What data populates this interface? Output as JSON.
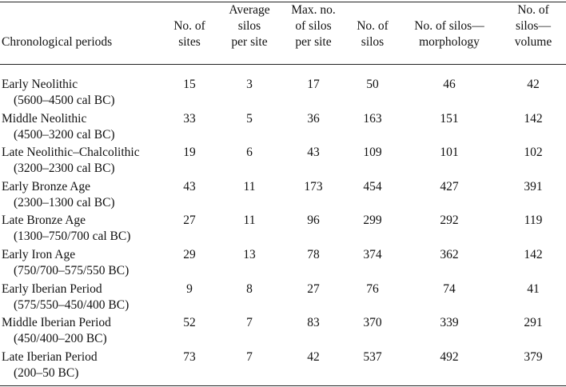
{
  "table": {
    "header": [
      [
        "Chronological periods"
      ],
      [
        "No. of",
        "sites"
      ],
      [
        "Average",
        "silos",
        "per site"
      ],
      [
        "Max. no.",
        "of silos",
        "per site"
      ],
      [
        "No. of",
        "silos"
      ],
      [
        "No. of silos—",
        "morphology"
      ],
      [
        "No. of",
        "silos—",
        "volume"
      ]
    ],
    "rows": [
      {
        "period": "Early Neolithic",
        "dates": "(5600–4500 cal BC)",
        "cells": [
          "15",
          "3",
          "17",
          "50",
          "46",
          "42"
        ]
      },
      {
        "period": "Middle Neolithic",
        "dates": "(4500–3200 cal BC)",
        "cells": [
          "33",
          "5",
          "36",
          "163",
          "151",
          "142"
        ]
      },
      {
        "period": "Late Neolithic–Chalcolithic",
        "dates": "(3200–2300 cal BC)",
        "cells": [
          "19",
          "6",
          "43",
          "109",
          "101",
          "102"
        ]
      },
      {
        "period": "Early Bronze Age",
        "dates": "(2300–1300 cal BC)",
        "cells": [
          "43",
          "11",
          "173",
          "454",
          "427",
          "391"
        ]
      },
      {
        "period": "Late Bronze Age",
        "dates": "(1300–750/700 cal BC)",
        "cells": [
          "27",
          "11",
          "96",
          "299",
          "292",
          "119"
        ]
      },
      {
        "period": "Early Iron Age",
        "dates": "(750/700–575/550 BC)",
        "cells": [
          "29",
          "13",
          "78",
          "374",
          "362",
          "142"
        ]
      },
      {
        "period": "Early Iberian Period",
        "dates": "(575/550–450/400 BC)",
        "cells": [
          "9",
          "8",
          "27",
          "76",
          "74",
          "41"
        ]
      },
      {
        "period": "Middle Iberian Period",
        "dates": "(450/400–200 BC)",
        "cells": [
          "52",
          "7",
          "83",
          "370",
          "339",
          "291"
        ]
      },
      {
        "period": "Late Iberian Period",
        "dates": "(200–50 BC)",
        "cells": [
          "73",
          "7",
          "42",
          "537",
          "492",
          "379"
        ]
      }
    ]
  }
}
